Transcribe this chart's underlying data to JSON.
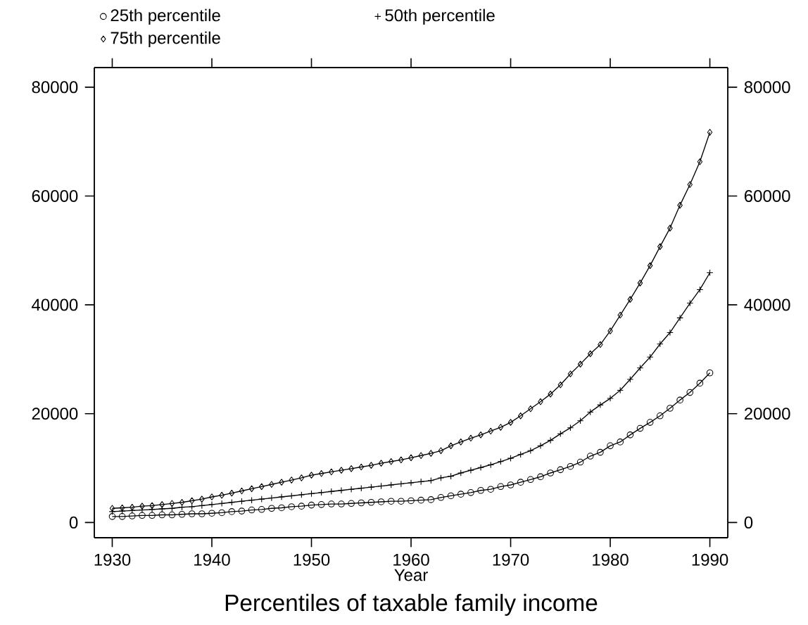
{
  "chart_data": {
    "type": "line",
    "title": "Percentiles of taxable family income",
    "xlabel": "Year",
    "x": [
      1930,
      1931,
      1932,
      1933,
      1934,
      1935,
      1936,
      1937,
      1938,
      1939,
      1940,
      1941,
      1942,
      1943,
      1944,
      1945,
      1946,
      1947,
      1948,
      1949,
      1950,
      1951,
      1952,
      1953,
      1954,
      1955,
      1956,
      1957,
      1958,
      1959,
      1960,
      1961,
      1962,
      1963,
      1964,
      1965,
      1966,
      1967,
      1968,
      1969,
      1970,
      1971,
      1972,
      1973,
      1974,
      1975,
      1976,
      1977,
      1978,
      1979,
      1980,
      1981,
      1982,
      1983,
      1984,
      1985,
      1986,
      1987,
      1988,
      1989,
      1990
    ],
    "series": [
      {
        "name": "25th percentile",
        "color": "#000000",
        "marker": "circle",
        "values": [
          1100,
          1100,
          1200,
          1300,
          1300,
          1400,
          1400,
          1500,
          1600,
          1600,
          1700,
          1800,
          2000,
          2100,
          2300,
          2400,
          2600,
          2700,
          2900,
          3000,
          3200,
          3300,
          3400,
          3400,
          3500,
          3600,
          3700,
          3800,
          3900,
          3900,
          4000,
          4100,
          4200,
          4600,
          4900,
          5200,
          5500,
          5900,
          6100,
          6600,
          6900,
          7400,
          7900,
          8400,
          9100,
          9700,
          10300,
          11100,
          12200,
          12900,
          14100,
          14800,
          16100,
          17300,
          18400,
          19600,
          21000,
          22500,
          23900,
          25600,
          27500
        ]
      },
      {
        "name": "50th percentile",
        "color": "#000000",
        "marker": "cross",
        "values": [
          2000,
          2100,
          2200,
          2300,
          2400,
          2500,
          2600,
          2800,
          2900,
          3100,
          3300,
          3500,
          3700,
          3900,
          4100,
          4300,
          4500,
          4700,
          4900,
          5100,
          5300,
          5500,
          5700,
          5900,
          6100,
          6300,
          6500,
          6700,
          6900,
          7100,
          7300,
          7500,
          7700,
          8200,
          8500,
          9100,
          9600,
          10100,
          10600,
          11200,
          11800,
          12500,
          13200,
          14100,
          15100,
          16300,
          17400,
          18700,
          20300,
          21600,
          22800,
          24300,
          26300,
          28400,
          30400,
          32800,
          34900,
          37600,
          40300,
          42800,
          45900
        ]
      },
      {
        "name": "75th percentile",
        "color": "#000000",
        "marker": "diamond",
        "values": [
          2600,
          2700,
          2800,
          3000,
          3100,
          3300,
          3500,
          3700,
          4000,
          4300,
          4700,
          5000,
          5400,
          5800,
          6200,
          6600,
          7000,
          7400,
          7800,
          8200,
          8700,
          9000,
          9300,
          9600,
          9900,
          10200,
          10500,
          10900,
          11200,
          11500,
          11900,
          12300,
          12700,
          13200,
          14100,
          14800,
          15500,
          16100,
          16800,
          17500,
          18400,
          19600,
          20900,
          22200,
          23600,
          25300,
          27300,
          29100,
          31000,
          32700,
          35200,
          38100,
          41000,
          44000,
          47200,
          50700,
          54100,
          58300,
          62100,
          66300,
          71700
        ]
      }
    ],
    "xlim": [
      1928.2,
      1991.8
    ],
    "ylim": [
      -2800,
      83600
    ],
    "xticks": [
      1930,
      1940,
      1950,
      1960,
      1970,
      1980,
      1990
    ],
    "yticks": [
      0,
      20000,
      40000,
      60000,
      80000
    ],
    "y2lim": [
      -2800,
      83600
    ],
    "y2ticks": [
      0,
      20000,
      40000,
      60000,
      80000
    ],
    "legend": "top",
    "line_style": "solid"
  }
}
